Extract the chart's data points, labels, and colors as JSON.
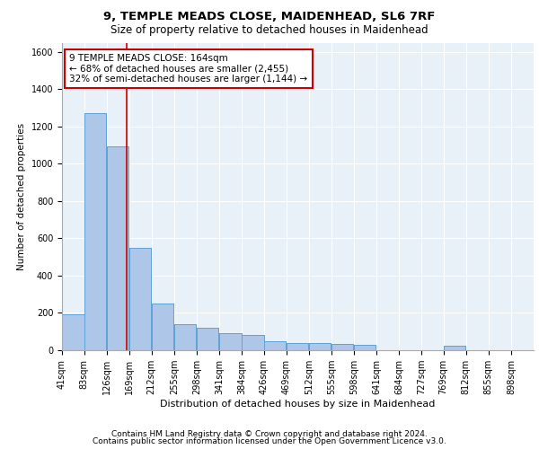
{
  "title1": "9, TEMPLE MEADS CLOSE, MAIDENHEAD, SL6 7RF",
  "title2": "Size of property relative to detached houses in Maidenhead",
  "xlabel": "Distribution of detached houses by size in Maidenhead",
  "ylabel": "Number of detached properties",
  "bin_labels": [
    "41sqm",
    "83sqm",
    "126sqm",
    "169sqm",
    "212sqm",
    "255sqm",
    "298sqm",
    "341sqm",
    "384sqm",
    "426sqm",
    "469sqm",
    "512sqm",
    "555sqm",
    "598sqm",
    "641sqm",
    "684sqm",
    "727sqm",
    "769sqm",
    "812sqm",
    "855sqm",
    "898sqm"
  ],
  "bin_edges": [
    41,
    83,
    126,
    169,
    212,
    255,
    298,
    341,
    384,
    426,
    469,
    512,
    555,
    598,
    641,
    684,
    727,
    769,
    812,
    855,
    898,
    941
  ],
  "bar_heights": [
    195,
    1270,
    1095,
    550,
    250,
    140,
    120,
    90,
    80,
    50,
    40,
    40,
    35,
    30,
    0,
    0,
    0,
    25,
    0,
    0,
    0
  ],
  "bar_color": "#aec6e8",
  "bar_edge_color": "#5a9fd4",
  "property_size": 164,
  "vline_color": "#cc0000",
  "annotation_line1": "9 TEMPLE MEADS CLOSE: 164sqm",
  "annotation_line2": "← 68% of detached houses are smaller (2,455)",
  "annotation_line3": "32% of semi-detached houses are larger (1,144) →",
  "annotation_box_color": "#cc0000",
  "background_color": "#e8f0f8",
  "grid_color": "#ffffff",
  "ylim": [
    0,
    1650
  ],
  "yticks": [
    0,
    200,
    400,
    600,
    800,
    1000,
    1200,
    1400,
    1600
  ],
  "footer1": "Contains HM Land Registry data © Crown copyright and database right 2024.",
  "footer2": "Contains public sector information licensed under the Open Government Licence v3.0.",
  "title1_fontsize": 9.5,
  "title2_fontsize": 8.5,
  "xlabel_fontsize": 8,
  "ylabel_fontsize": 7.5,
  "tick_fontsize": 7,
  "annotation_fontsize": 7.5,
  "footer_fontsize": 6.5
}
